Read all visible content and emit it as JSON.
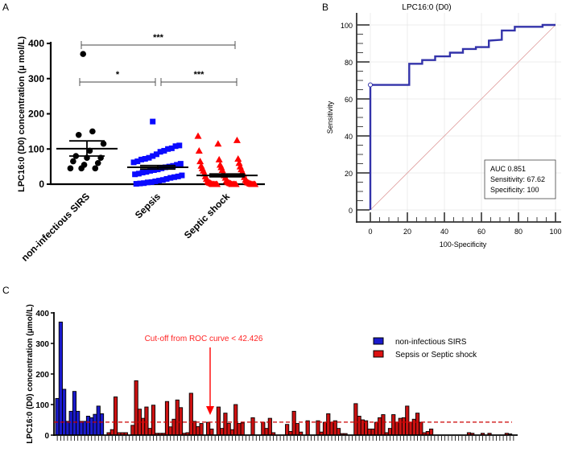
{
  "chart_data": [
    {
      "panel": "A",
      "type": "scatter",
      "ylabel": "LPC16:0 (D0) concentration (μ mol/L)",
      "ylim": [
        0,
        400
      ],
      "yticks": [
        "0",
        "100",
        "200",
        "300",
        "400"
      ],
      "categories": [
        "non-infectious SIRS",
        "Sepsis",
        "Septic shock"
      ],
      "series": [
        {
          "name": "non-infectious SIRS",
          "color": "#000000",
          "marker": "circle",
          "mean": 101,
          "sem": [
            80,
            123
          ],
          "values": [
            370,
            150,
            140,
            115,
            95,
            80,
            75,
            75,
            65,
            60,
            55,
            45,
            45,
            45
          ]
        },
        {
          "name": "Sepsis",
          "color": "#0a0aff",
          "marker": "square",
          "mean": 48,
          "sem": [
            43,
            53
          ],
          "values": [
            178,
            110,
            108,
            102,
            100,
            95,
            92,
            85,
            80,
            75,
            72,
            70,
            65,
            62,
            58,
            55,
            52,
            50,
            48,
            45,
            42,
            40,
            38,
            35,
            33,
            30,
            28,
            25,
            22,
            20,
            18,
            15,
            12,
            10,
            8,
            6,
            5,
            3,
            2,
            1
          ]
        },
        {
          "name": "Septic shock",
          "color": "#ff0000",
          "marker": "triangle",
          "mean": 25,
          "sem": [
            21,
            29
          ],
          "values": [
            137,
            125,
            115,
            95,
            72,
            70,
            65,
            60,
            55,
            52,
            50,
            48,
            45,
            42,
            40,
            38,
            35,
            32,
            30,
            28,
            25,
            22,
            20,
            18,
            15,
            12,
            10,
            8,
            8,
            6,
            6,
            5,
            5,
            4,
            4,
            3,
            3,
            2,
            2,
            1,
            1,
            0,
            0,
            0,
            0,
            0,
            0,
            0,
            0,
            0,
            0,
            0,
            0,
            0,
            0
          ]
        }
      ],
      "significance": [
        {
          "from": 0,
          "to": 2,
          "label": "***"
        },
        {
          "from": 0,
          "to": 1,
          "label": "*"
        },
        {
          "from": 1,
          "to": 2,
          "label": "***"
        }
      ]
    },
    {
      "panel": "B",
      "type": "line",
      "title": "LPC16:0 (D0)",
      "xlabel": "100-Specificity",
      "ylabel": "Sensitivity",
      "xlim": [
        0,
        100
      ],
      "ylim": [
        0,
        100
      ],
      "xticks": [
        "0",
        "20",
        "40",
        "60",
        "80",
        "100"
      ],
      "yticks": [
        "0",
        "20",
        "40",
        "60",
        "80",
        "100"
      ],
      "grid": true,
      "roc": {
        "x": [
          0,
          0,
          21,
          21,
          28,
          28,
          35,
          35,
          43,
          43,
          50,
          50,
          57,
          57,
          64,
          64,
          71,
          71,
          78,
          78,
          93,
          93,
          100
        ],
        "y": [
          0,
          67.6,
          67.6,
          79,
          79,
          81,
          81,
          83,
          83,
          85,
          85,
          87,
          87,
          88,
          88,
          91.5,
          92,
          97,
          97,
          99,
          99,
          100,
          100
        ]
      },
      "cutoff_point": {
        "x": 0,
        "y": 67.62
      },
      "legend": [
        "AUC 0.851",
        "Sensitivity: 67.62",
        "Specificity: 100"
      ],
      "colors": {
        "curve": "#3333aa",
        "diagonal": "#e0a0a0"
      }
    },
    {
      "panel": "C",
      "type": "bar",
      "ylabel": "LPC16:0 (D0) concentration (μmol/L)",
      "ylim": [
        0,
        400
      ],
      "yticks": [
        "0",
        "100",
        "200",
        "300",
        "400"
      ],
      "cutoff": 42.426,
      "annotation": "Cut-off from ROC curve  < 42.426",
      "legend": [
        "non-infectious SIRS",
        "Sepsis or Septic shock"
      ],
      "colors": {
        "sirs": "#1a1acc",
        "sepsis": "#cc1111",
        "cutoff": "#cc0000"
      },
      "series": [
        {
          "name": "non-infectious SIRS",
          "values": [
            120,
            370,
            150,
            45,
            78,
            143,
            78,
            45,
            45,
            62,
            57,
            68,
            95,
            70
          ]
        },
        {
          "name": "Sepsis or Septic shock",
          "values": [
            0,
            8,
            18,
            125,
            8,
            8,
            8,
            0,
            32,
            178,
            85,
            55,
            92,
            22,
            98,
            6,
            6,
            6,
            110,
            27,
            52,
            115,
            90,
            6,
            8,
            137,
            45,
            28,
            38,
            0,
            42,
            20,
            0,
            92,
            22,
            72,
            38,
            18,
            100,
            38,
            40,
            0,
            0,
            57,
            0,
            0,
            42,
            22,
            55,
            8,
            0,
            0,
            0,
            35,
            12,
            78,
            38,
            10,
            0,
            47,
            0,
            0,
            47,
            10,
            42,
            70,
            42,
            47,
            22,
            5,
            5,
            0,
            0,
            103,
            62,
            50,
            47,
            20,
            20,
            42,
            57,
            67,
            8,
            22,
            67,
            42,
            55,
            57,
            95,
            42,
            52,
            72,
            42,
            8,
            12,
            20,
            0,
            0,
            0,
            0,
            0,
            0,
            0,
            0,
            0,
            0,
            8,
            6,
            0,
            0,
            6,
            0,
            6,
            0,
            0,
            0,
            0,
            6,
            4,
            0
          ]
        }
      ]
    }
  ],
  "panel_labels": [
    "A",
    "B",
    "C"
  ]
}
